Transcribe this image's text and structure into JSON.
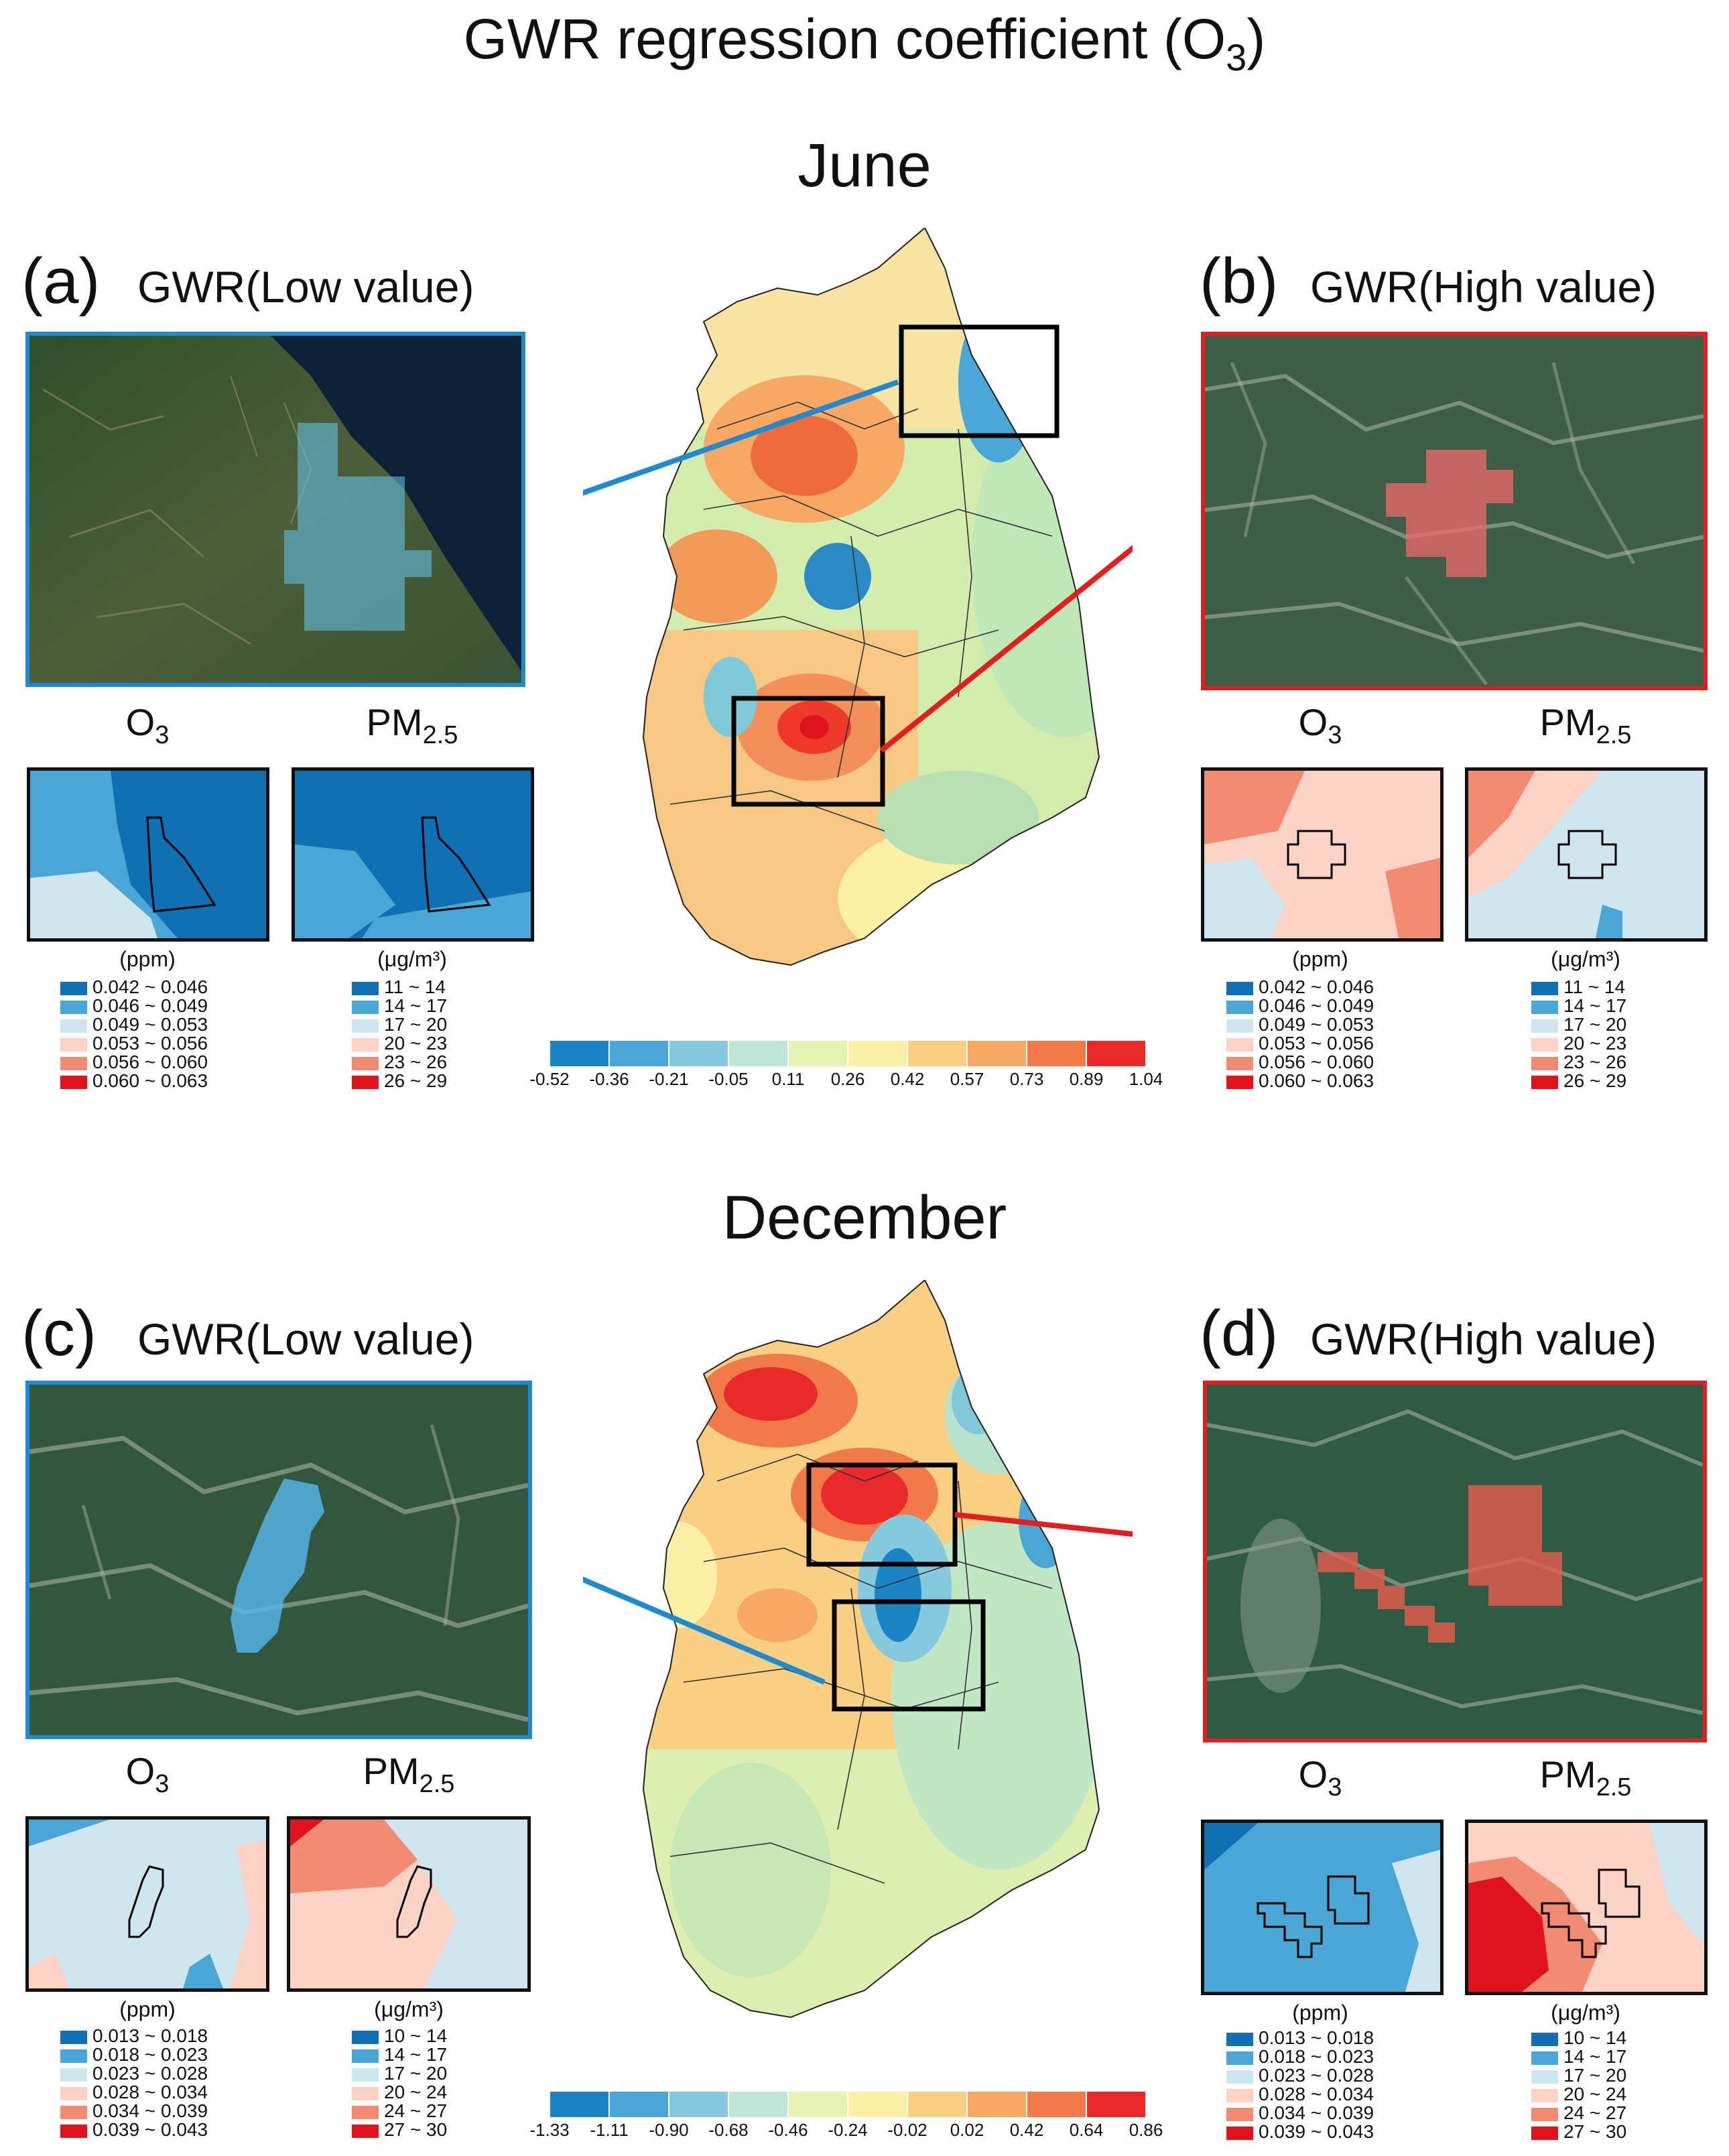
{
  "title": "GWR regression coefficient (O",
  "title_sub": "3",
  "title_close": ")",
  "sections": {
    "june": "June",
    "december": "December"
  },
  "panels": {
    "a": {
      "letter": "(a)",
      "label": "GWR(Low value)"
    },
    "b": {
      "letter": "(b)",
      "label": "GWR(High value)"
    },
    "c": {
      "letter": "(c)",
      "label": "GWR(Low value)"
    },
    "d": {
      "letter": "(d)",
      "label": "GWR(High value)"
    }
  },
  "mini_titles": {
    "o3": "O",
    "o3_sub": "3",
    "pm": "PM",
    "pm_sub": "2.5"
  },
  "units": {
    "ppm": "(ppm)",
    "ugm3": "(μg/m³)"
  },
  "legends": {
    "june_o3": [
      "0.042 ~ 0.046",
      "0.046 ~ 0.049",
      "0.049 ~ 0.053",
      "0.053 ~ 0.056",
      "0.056 ~ 0.060",
      "0.060 ~ 0.063"
    ],
    "june_pm": [
      "11 ~ 14",
      "14 ~ 17",
      "17 ~ 20",
      "20 ~ 23",
      "23 ~ 26",
      "26 ~ 29"
    ],
    "dec_o3": [
      "0.013 ~ 0.018",
      "0.018 ~ 0.023",
      "0.023 ~ 0.028",
      "0.028 ~ 0.034",
      "0.034 ~ 0.039",
      "0.039 ~ 0.043"
    ],
    "dec_pm_c": [
      "10 ~ 14",
      "14 ~ 17",
      "17 ~ 20",
      "20 ~ 24",
      "24 ~ 27",
      "27 ~ 30"
    ],
    "dec_pm_d": [
      "10 ~ 14",
      "14 ~ 17",
      "17 ~ 20",
      "20 ~ 24",
      "24 ~ 27",
      "27 ~ 30"
    ]
  },
  "legend_colors": [
    "#1170b4",
    "#4aa7d5",
    "#cfe6ef",
    "#fbd3c6",
    "#f28a74",
    "#e0141d"
  ],
  "colorbar": {
    "june_ticks": [
      "-0.52",
      "-0.36",
      "-0.21",
      "-0.05",
      "0.11",
      "0.26",
      "0.42",
      "0.57",
      "0.73",
      "0.89",
      "1.04"
    ],
    "dec_ticks": [
      "-1.33",
      "-1.11",
      "-0.90",
      "-0.68",
      "-0.46",
      "-0.24",
      "-0.02",
      "0.02",
      "0.42",
      "0.64",
      "0.86"
    ],
    "colors": [
      "#1a84c4",
      "#4aa7d5",
      "#86c9df",
      "#bfe6d8",
      "#e5f2b4",
      "#fbf0a6",
      "#f9cf83",
      "#f6a864",
      "#f17a4a",
      "#ea2a2a"
    ]
  }
}
